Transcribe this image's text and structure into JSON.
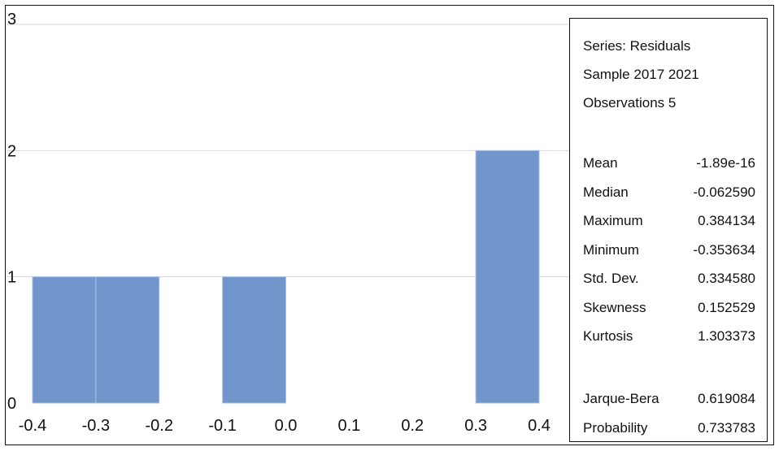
{
  "chart_data": {
    "type": "bar",
    "title": "",
    "xlabel": "",
    "ylabel": "",
    "bins": [
      {
        "start": -0.4,
        "end": -0.3,
        "count": 1
      },
      {
        "start": -0.3,
        "end": -0.2,
        "count": 1
      },
      {
        "start": -0.1,
        "end": 0.0,
        "count": 1
      },
      {
        "start": 0.3,
        "end": 0.4,
        "count": 2
      }
    ],
    "xlim": [
      -0.4,
      0.4
    ],
    "ylim": [
      0,
      3
    ],
    "x_ticks": [
      "-0.4",
      "-0.3",
      "-0.2",
      "-0.1",
      "0.0",
      "0.1",
      "0.2",
      "0.3",
      "0.4"
    ],
    "y_ticks": [
      "0",
      "1",
      "2",
      "3"
    ],
    "grid": true,
    "bar_color": "#7096cc"
  },
  "stats": {
    "series": "Series: Residuals",
    "sample": "Sample 2017 2021",
    "observations": "Observations 5",
    "rows": [
      {
        "label": "Mean",
        "value": "-1.89e-16"
      },
      {
        "label": "Median",
        "value": "-0.062590"
      },
      {
        "label": "Maximum",
        "value": "0.384134"
      },
      {
        "label": "Minimum",
        "value": "-0.353634"
      },
      {
        "label": "Std. Dev.",
        "value": "0.334580"
      },
      {
        "label": "Skewness",
        "value": "0.152529"
      },
      {
        "label": "Kurtosis",
        "value": "1.303373"
      }
    ],
    "test_rows": [
      {
        "label": "Jarque-Bera",
        "value": "0.619084"
      },
      {
        "label": "Probability",
        "value": "0.733783"
      }
    ]
  }
}
